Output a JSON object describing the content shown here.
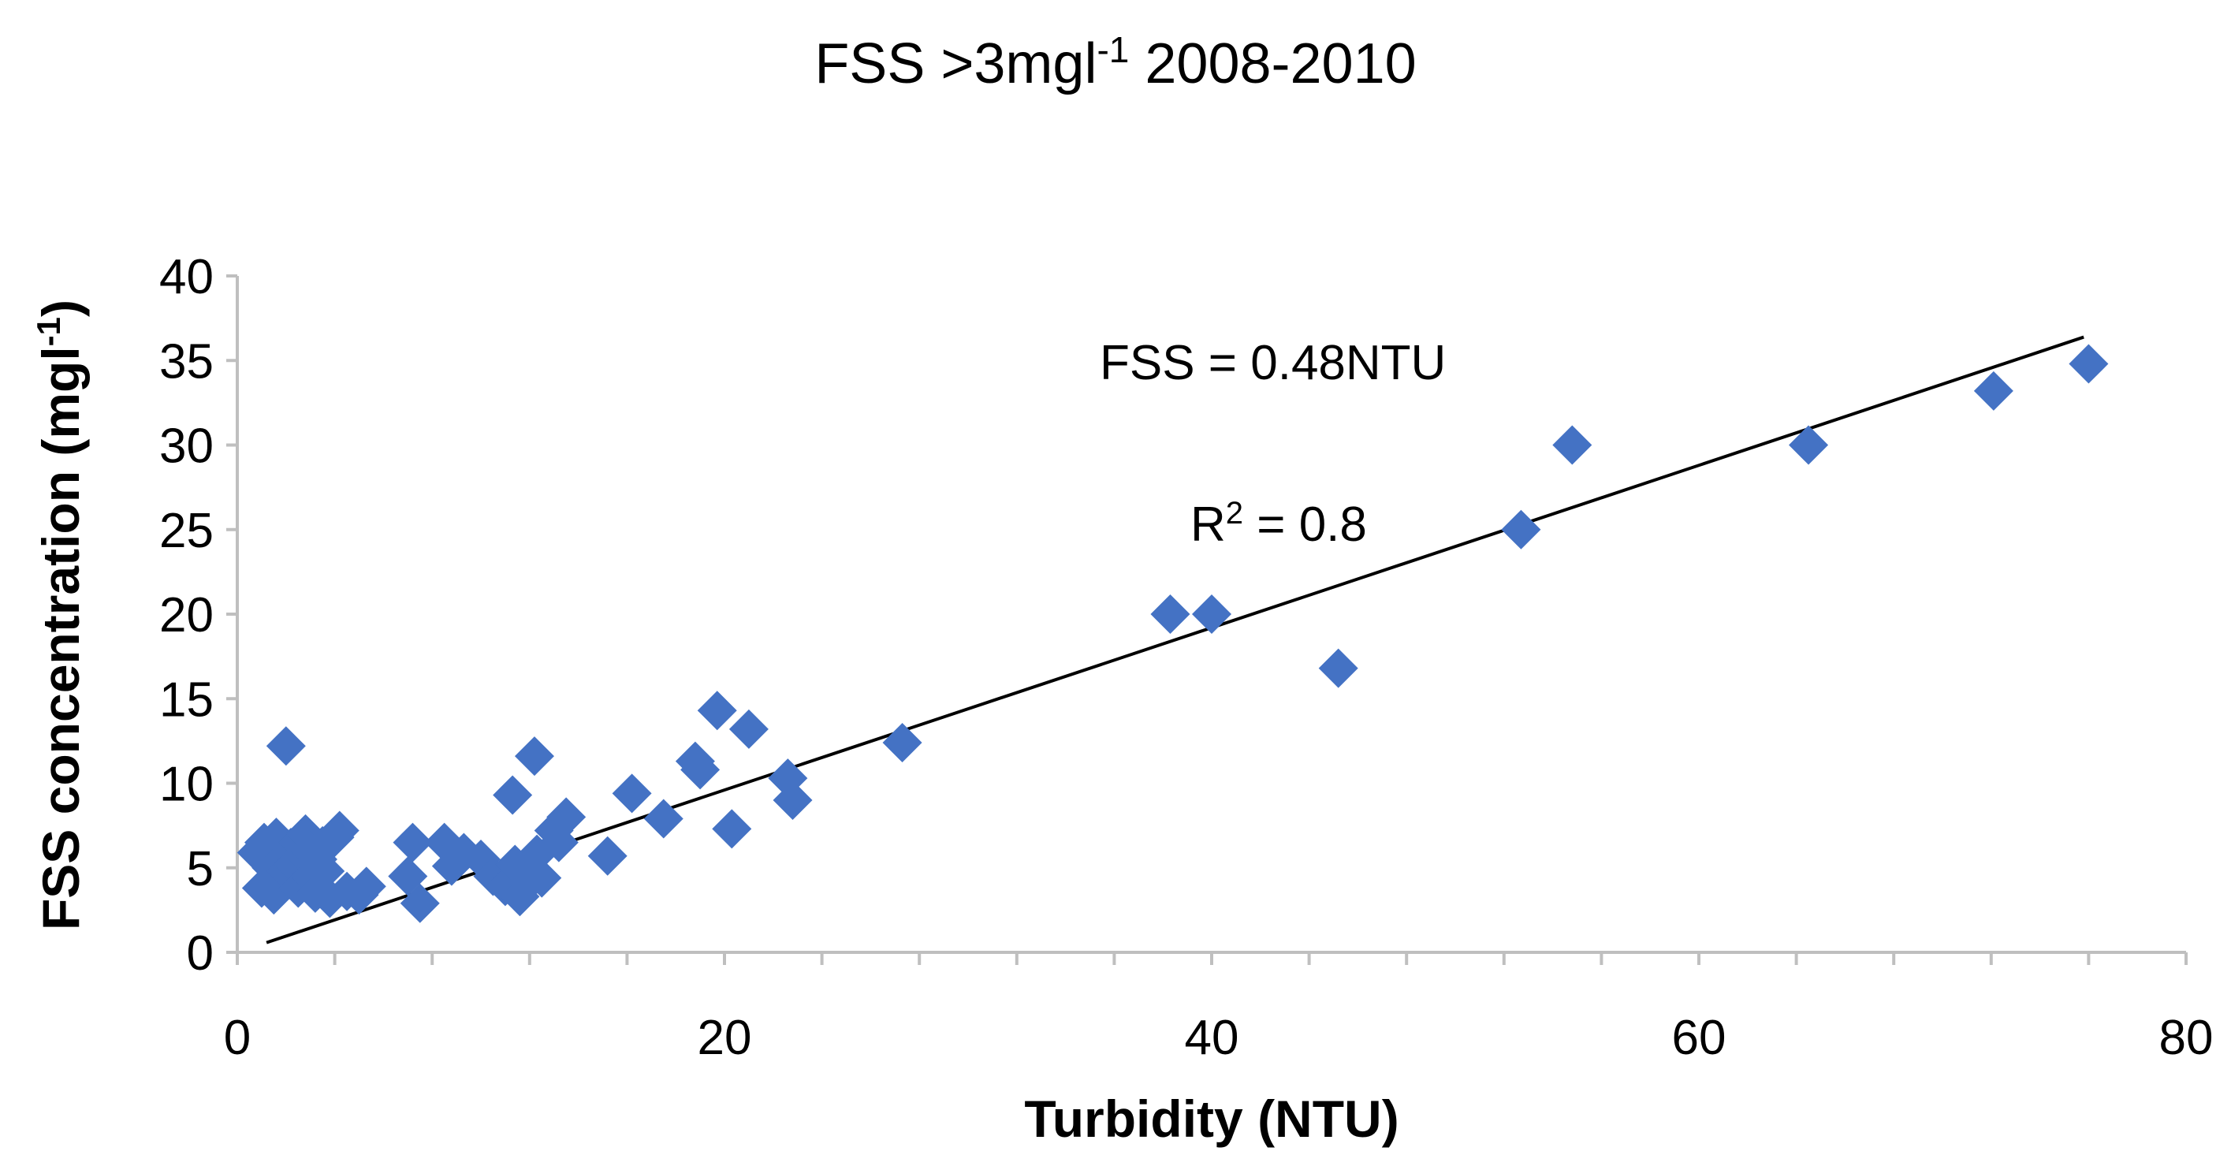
{
  "chart_data": {
    "type": "scatter",
    "title": "FSS >3mgl",
    "title_sup": "-1",
    "title_suffix": " 2008-2010",
    "xlabel": "Turbidity (NTU)",
    "ylabel_main": "FSS concentration (mgl",
    "ylabel_sup": "-1",
    "ylabel_close": ")",
    "xlim": [
      0,
      80
    ],
    "ylim": [
      0,
      40
    ],
    "x_ticks": [
      0,
      20,
      40,
      60,
      80
    ],
    "y_ticks": [
      0,
      5,
      10,
      15,
      20,
      25,
      30,
      35,
      40
    ],
    "x_tick_labels": [
      "0",
      "20",
      "40",
      "60",
      "80"
    ],
    "y_tick_labels": [
      "0",
      "5",
      "10",
      "15",
      "20",
      "25",
      "30",
      "35",
      "40"
    ],
    "grid": false,
    "legend": "none",
    "marker_color": "#4472C4",
    "series": [
      {
        "name": "FSS",
        "points": [
          [
            0.8,
            5.9
          ],
          [
            1.0,
            3.8
          ],
          [
            1.1,
            6.5
          ],
          [
            1.4,
            5.0
          ],
          [
            1.5,
            3.4
          ],
          [
            1.6,
            6.8
          ],
          [
            1.7,
            4.2
          ],
          [
            1.9,
            5.6
          ],
          [
            2.0,
            12.2
          ],
          [
            2.0,
            4.8
          ],
          [
            2.2,
            6.2
          ],
          [
            2.3,
            5.2
          ],
          [
            2.5,
            6.5
          ],
          [
            2.5,
            3.8
          ],
          [
            2.7,
            5.8
          ],
          [
            2.8,
            7.0
          ],
          [
            3.0,
            4.5
          ],
          [
            3.0,
            6.0
          ],
          [
            3.2,
            3.5
          ],
          [
            3.3,
            5.5
          ],
          [
            3.5,
            6.3
          ],
          [
            3.6,
            4.8
          ],
          [
            3.8,
            3.2
          ],
          [
            4.0,
            6.8
          ],
          [
            4.2,
            7.2
          ],
          [
            4.5,
            3.6
          ],
          [
            5.0,
            3.4
          ],
          [
            5.3,
            3.9
          ],
          [
            7.0,
            4.5
          ],
          [
            7.2,
            6.5
          ],
          [
            7.5,
            2.9
          ],
          [
            8.5,
            6.5
          ],
          [
            8.8,
            5.1
          ],
          [
            9.3,
            5.9
          ],
          [
            10.0,
            5.5
          ],
          [
            10.5,
            4.5
          ],
          [
            11.0,
            3.9
          ],
          [
            11.3,
            9.3
          ],
          [
            11.4,
            5.2
          ],
          [
            11.6,
            3.3
          ],
          [
            12.0,
            4.2
          ],
          [
            12.2,
            11.6
          ],
          [
            12.3,
            5.8
          ],
          [
            12.5,
            4.4
          ],
          [
            13.0,
            7.2
          ],
          [
            13.2,
            6.5
          ],
          [
            13.5,
            8.0
          ],
          [
            15.2,
            5.7
          ],
          [
            16.2,
            9.4
          ],
          [
            17.5,
            7.9
          ],
          [
            18.8,
            11.3
          ],
          [
            19.0,
            10.8
          ],
          [
            19.7,
            14.3
          ],
          [
            20.3,
            7.3
          ],
          [
            21.0,
            13.2
          ],
          [
            22.6,
            10.3
          ],
          [
            22.8,
            9.0
          ],
          [
            27.3,
            12.4
          ],
          [
            38.3,
            20.0
          ],
          [
            40.0,
            20.0
          ],
          [
            45.2,
            16.8
          ],
          [
            52.7,
            25.0
          ],
          [
            54.8,
            30.0
          ],
          [
            64.5,
            30.0
          ],
          [
            72.1,
            33.2
          ],
          [
            76.0,
            34.8
          ]
        ]
      }
    ],
    "trendline": {
      "equation": "FSS = 0.48NTU",
      "r2_prefix": "R",
      "r2_sup": "2",
      "r2_suffix": " = 0.8",
      "slope": 0.48,
      "x_start": 1.2,
      "x_end": 75.8
    }
  }
}
